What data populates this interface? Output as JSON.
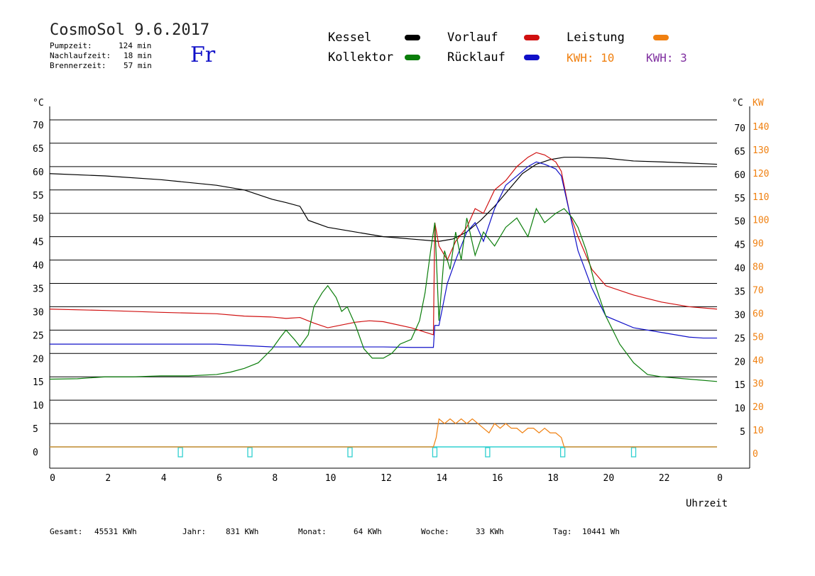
{
  "header": {
    "title": "CosmoSol 9.6.2017",
    "day": "Fr",
    "pumpzeit_label": "Pumpzeit:",
    "pumpzeit_value": "124 min",
    "nachlaufzeit_label": "Nachlaufzeit:",
    "nachlaufzeit_value": "18 min",
    "brennerzeit_label": "Brennerzeit:",
    "brennerzeit_value": "57 min"
  },
  "legend": {
    "kessel": "Kessel",
    "kollektor": "Kollektor",
    "vorlauf": "Vorlauf",
    "ruecklauf": "Rücklauf",
    "leistung": "Leistung",
    "kwh_orange": "KWH: 10",
    "kwh_purple": "KWH: 3"
  },
  "colors": {
    "kessel": "#000000",
    "kollektor": "#0a7d0a",
    "vorlauf": "#d01010",
    "ruecklauf": "#1010c8",
    "leistung": "#f08010",
    "purple": "#8030a0",
    "cyan": "#30d0d0"
  },
  "footer": {
    "gesamt_label": "Gesamt:",
    "gesamt_value": "45531 KWh",
    "jahr_label": "Jahr:",
    "jahr_value": "831 KWh",
    "monat_label": "Monat:",
    "monat_value": "64 KWh",
    "woche_label": "Woche:",
    "woche_value": "33 KWh",
    "tag_label": "Tag:",
    "tag_value": "10441 Wh"
  },
  "chart_data": {
    "type": "line",
    "xlabel": "Uhrzeit",
    "ylabel": "°C",
    "ylabel_right": "KW",
    "xlim": [
      0,
      24
    ],
    "ylim": [
      0,
      70
    ],
    "ylim_right": [
      0,
      140
    ],
    "x_ticks": [
      "0",
      "2",
      "4",
      "6",
      "8",
      "10",
      "12",
      "14",
      "16",
      "18",
      "20",
      "22",
      "0"
    ],
    "y_ticks_left": [
      "0",
      "5",
      "10",
      "15",
      "20",
      "25",
      "30",
      "35",
      "40",
      "45",
      "50",
      "55",
      "60",
      "65",
      "70"
    ],
    "y_ticks_right_c": [
      "5",
      "10",
      "15",
      "20",
      "25",
      "30",
      "35",
      "40",
      "45",
      "50",
      "55",
      "60",
      "65",
      "70"
    ],
    "y_ticks_right_kw": [
      "0",
      "10",
      "20",
      "30",
      "40",
      "50",
      "60",
      "70",
      "80",
      "90",
      "100",
      "110",
      "120",
      "130",
      "140"
    ],
    "grid": true,
    "series": [
      {
        "name": "Kessel",
        "color": "#000000",
        "x": [
          0,
          2,
          4,
          6,
          7,
          8,
          8.5,
          9,
          9.3,
          10,
          11,
          12,
          13,
          14,
          14.5,
          15,
          15.5,
          16,
          16.5,
          17,
          17.5,
          18,
          18.5,
          19,
          20,
          21,
          22,
          24
        ],
        "y": [
          58.5,
          58,
          57.2,
          56,
          55,
          53,
          52.3,
          51.5,
          48.5,
          47,
          46,
          45,
          44.5,
          44,
          44.5,
          46,
          48.5,
          51.5,
          55,
          58.5,
          60.5,
          61.5,
          62,
          62,
          61.8,
          61.2,
          61,
          60.5
        ]
      },
      {
        "name": "Vorlauf",
        "color": "#d01010",
        "x": [
          0,
          2,
          4,
          6,
          7,
          8,
          8.5,
          9,
          9.5,
          10,
          11,
          11.5,
          12,
          13,
          13.8,
          13.85,
          14,
          14.3,
          14.6,
          15,
          15.3,
          15.6,
          16,
          16.4,
          16.8,
          17.2,
          17.5,
          17.8,
          18.2,
          18.4,
          18.7,
          19,
          19.5,
          20,
          21,
          22,
          23,
          24
        ],
        "y": [
          29.5,
          29.2,
          28.8,
          28.5,
          28,
          27.8,
          27.5,
          27.7,
          26.5,
          25.5,
          26.7,
          27,
          26.8,
          25.5,
          24,
          48,
          43,
          40,
          44,
          47,
          51,
          50,
          55,
          57,
          60,
          62,
          63,
          62.5,
          61,
          59,
          50,
          45,
          38,
          34.5,
          32.5,
          31,
          30,
          29.5
        ]
      },
      {
        "name": "Rücklauf",
        "color": "#1010c8",
        "x": [
          0,
          2,
          4,
          6,
          7,
          8,
          10,
          12,
          13,
          13.8,
          13.85,
          14,
          14.3,
          14.6,
          15,
          15.3,
          15.6,
          16,
          16.4,
          16.8,
          17.2,
          17.5,
          17.8,
          18.2,
          18.4,
          18.7,
          19,
          19.5,
          20,
          21,
          22,
          23,
          23.5,
          24
        ],
        "y": [
          22,
          22,
          22,
          22,
          21.7,
          21.4,
          21.4,
          21.4,
          21.3,
          21.3,
          26,
          26,
          35,
          40,
          46,
          48,
          44,
          51,
          56,
          58,
          60,
          61,
          60.5,
          59.5,
          58,
          50,
          42,
          34,
          28,
          25.5,
          24.5,
          23.5,
          23.3,
          23.3
        ]
      },
      {
        "name": "Kollektor",
        "color": "#0a7d0a",
        "x": [
          0,
          1,
          2,
          3,
          4,
          5,
          6,
          6.5,
          7,
          7.5,
          8,
          8.3,
          8.5,
          8.8,
          9,
          9.3,
          9.5,
          9.8,
          10,
          10.3,
          10.5,
          10.7,
          11,
          11.3,
          11.6,
          12,
          12.3,
          12.6,
          13,
          13.3,
          13.5,
          13.7,
          13.85,
          14,
          14.2,
          14.4,
          14.6,
          14.8,
          15,
          15.3,
          15.6,
          16,
          16.4,
          16.8,
          17.2,
          17.5,
          17.8,
          18.2,
          18.5,
          18.8,
          19,
          19.3,
          19.6,
          20,
          20.5,
          21,
          21.5,
          22,
          23,
          24
        ],
        "y": [
          14.5,
          14.6,
          15,
          15,
          15.2,
          15.2,
          15.5,
          16,
          16.8,
          18,
          21,
          23.5,
          25,
          23,
          21.5,
          24,
          30,
          33,
          34.5,
          32,
          29,
          30,
          26,
          21,
          19,
          19,
          20,
          22,
          23,
          27,
          33,
          42,
          48,
          27,
          42,
          38,
          46,
          40,
          49,
          41,
          46,
          43,
          47,
          49,
          45,
          51,
          48,
          50,
          51,
          49,
          47,
          42,
          35,
          28,
          22,
          18,
          15.5,
          15,
          14.5,
          14
        ]
      },
      {
        "name": "Leistung",
        "color": "#f08010",
        "x": [
          0,
          13.8,
          13.9,
          14,
          14.2,
          14.4,
          14.6,
          14.8,
          15,
          15.2,
          15.4,
          15.6,
          15.8,
          16,
          16.2,
          16.4,
          16.6,
          16.8,
          17,
          17.2,
          17.4,
          17.6,
          17.8,
          18,
          18.2,
          18.4,
          18.5,
          24
        ],
        "y": [
          0,
          0,
          2,
          6,
          5,
          6,
          5,
          6,
          5,
          6,
          5,
          4,
          3,
          5,
          4,
          5,
          4,
          4,
          3,
          4,
          4,
          3,
          4,
          3,
          3,
          2,
          0,
          0
        ]
      }
    ],
    "annotations": [
      "KWH: 10",
      "KWH: 3"
    ]
  }
}
